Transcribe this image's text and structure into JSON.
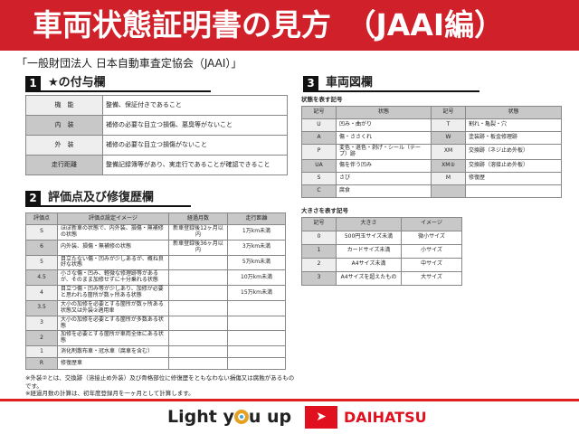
{
  "header": {
    "title": "車両状態証明書の見方　（JAAI編）"
  },
  "subtitle": "「一般財団法人 日本自動車査定協会（JAAI）」",
  "section1": {
    "num": "1",
    "title": "★の付与欄",
    "rows": [
      {
        "k": "機　能",
        "v": "整備、保証付きであること"
      },
      {
        "k": "内　装",
        "v": "補修の必要な目立つ損傷、悪臭等がないこと"
      },
      {
        "k": "外　装",
        "v": "補修の必要な目立つ損傷がないこと"
      },
      {
        "k": "走行距離",
        "v": "整備記録簿等があり、実走行であることが確認できること"
      }
    ]
  },
  "section2": {
    "num": "2",
    "title": "評価点及び修復歴欄",
    "headers": [
      "評価点",
      "評価点設定イメージ",
      "経過月数",
      "走行距離"
    ],
    "rows": [
      [
        "S",
        "ほぼ新車の状態で、内外装、損傷・無補修の状態",
        "新車登録後12ヶ月以内",
        "1万km未満"
      ],
      [
        "6",
        "内外装、損傷・無補修の状態",
        "新車登録後36ヶ月以内",
        "3万km未満"
      ],
      [
        "5",
        "目立たない傷・凹みが少しあるが、概ね良好な状態",
        "",
        "5万km未満"
      ],
      [
        "4.5",
        "小さな傷・凹み、軽微な修理跡等があるが、そのまま加修せずに十分乗れる状態",
        "",
        "10万km未満"
      ],
      [
        "4",
        "目立つ傷・凹み等が少しあり、加修が必要と思われる箇所が数ヶ所ある状態",
        "",
        "15万km未満"
      ],
      [
        "3.5",
        "大小の加修を必要とする箇所が数ヶ所ある状態又は外装②適用車",
        "",
        ""
      ],
      [
        "3",
        "大小の加修を必要とする箇所が多数ある状態",
        "",
        ""
      ],
      [
        "2",
        "加修を必要とする箇所が車両全体にある状態",
        "",
        ""
      ],
      [
        "1",
        "消化剤散布車・冠水車（腐車を含む）",
        "",
        ""
      ],
      [
        "R",
        "修復歴車",
        "",
        ""
      ]
    ]
  },
  "notes": [
    "※外装②とは、交換跡（溶接止め外装）及び骨格部位に修復歴をともなわない損傷又は腐蝕があるものです。",
    "※経過月数の計算は、初年度登録月を一ヶ月として計算します。"
  ],
  "section3": {
    "num": "3",
    "title": "車両図欄",
    "state_label": "状態を表す記号",
    "state_headers": [
      "記号",
      "状態",
      "記号",
      "状態"
    ],
    "state_rows": [
      [
        "U",
        "凹み・曲がり",
        "T",
        "割れ・亀裂・穴"
      ],
      [
        "A",
        "傷・ささくれ",
        "W",
        "塗装跡・板金修理跡"
      ],
      [
        "P",
        "変色・退色・剥げ・シール（テープ）跡",
        "XM",
        "交換跡（ネジ止め外板）"
      ],
      [
        "UA",
        "傷を伴う凹み",
        "XM②",
        "交換跡（溶接止め外板）"
      ],
      [
        "S",
        "さび",
        "M",
        "修復歴"
      ],
      [
        "C",
        "腐食",
        "",
        ""
      ]
    ],
    "size_label": "大きさを表す記号",
    "size_headers": [
      "記号",
      "大きさ",
      "イメージ"
    ],
    "size_rows": [
      [
        "0",
        "500円玉サイズ未満",
        "微小サイズ"
      ],
      [
        "1",
        "カードサイズ未満",
        "小サイズ"
      ],
      [
        "2",
        "A4サイズ未満",
        "中サイズ"
      ],
      [
        "3",
        "A4サイズを超えたもの",
        "大サイズ"
      ]
    ]
  },
  "footer": {
    "slogan_a": "Light y",
    "slogan_b": "u up",
    "brand": "DAIHATSU",
    "brand_color": "#e0101e"
  }
}
